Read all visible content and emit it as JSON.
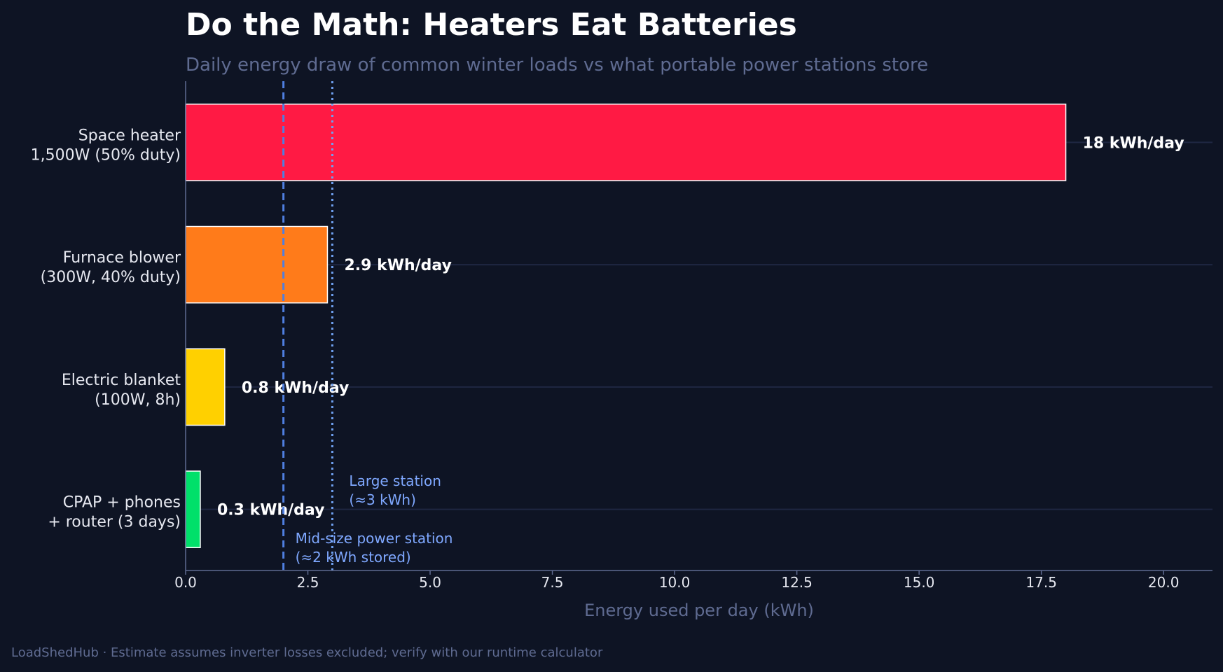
{
  "header": {
    "title": "Do the Math: Heaters Eat Batteries",
    "subtitle": "Daily energy draw of common winter loads vs what portable power stations store"
  },
  "footer": {
    "text": "LoadShedHub · Estimate assumes inverter losses excluded; verify with our runtime calculator"
  },
  "colors": {
    "background": "#0e1424",
    "axis": "#5f6b91",
    "grid": "#1f2742",
    "tick_text": "#e6e8f0",
    "bar_edge": "#ffffff",
    "midsize_line": "#4f7fe0",
    "large_line": "#6fa0f0",
    "annotation_text": "#7fa8ff"
  },
  "chart_data": {
    "type": "bar",
    "orientation": "horizontal",
    "title": "Do the Math: Heaters Eat Batteries",
    "subtitle": "Daily energy draw of common winter loads vs what portable power stations store",
    "xlabel": "Energy used per day (kWh)",
    "ylabel": "",
    "xlim": [
      0,
      21
    ],
    "xticks": [
      0.0,
      2.5,
      5.0,
      7.5,
      10.0,
      12.5,
      15.0,
      17.5,
      20.0
    ],
    "xtick_labels": [
      "0.0",
      "2.5",
      "5.0",
      "7.5",
      "10.0",
      "12.5",
      "15.0",
      "17.5",
      "20.0"
    ],
    "grid": "horizontal",
    "categories": [
      [
        "Space heater",
        "1,500W (50% duty)"
      ],
      [
        "Furnace blower",
        "(300W, 40% duty)"
      ],
      [
        "Electric blanket",
        "(100W, 8h)"
      ],
      [
        "CPAP + phones",
        "+ router (3 days)"
      ]
    ],
    "values": [
      18,
      2.9,
      0.8,
      0.3
    ],
    "value_labels": [
      "18 kWh/day",
      "2.9 kWh/day",
      "0.8 kWh/day",
      "0.3 kWh/day"
    ],
    "bar_colors": [
      "#ff1a44",
      "#ff7b1a",
      "#ffd000",
      "#00e06a"
    ],
    "reference_lines": [
      {
        "x": 2,
        "style": "dashed",
        "color": "#4f7fe0",
        "label": [
          "Mid-size power station",
          "(≈2 kWh stored)"
        ]
      },
      {
        "x": 3,
        "style": "dotted",
        "color": "#6fa0f0",
        "label": [
          "Large station",
          "(≈3 kWh)"
        ]
      }
    ]
  }
}
